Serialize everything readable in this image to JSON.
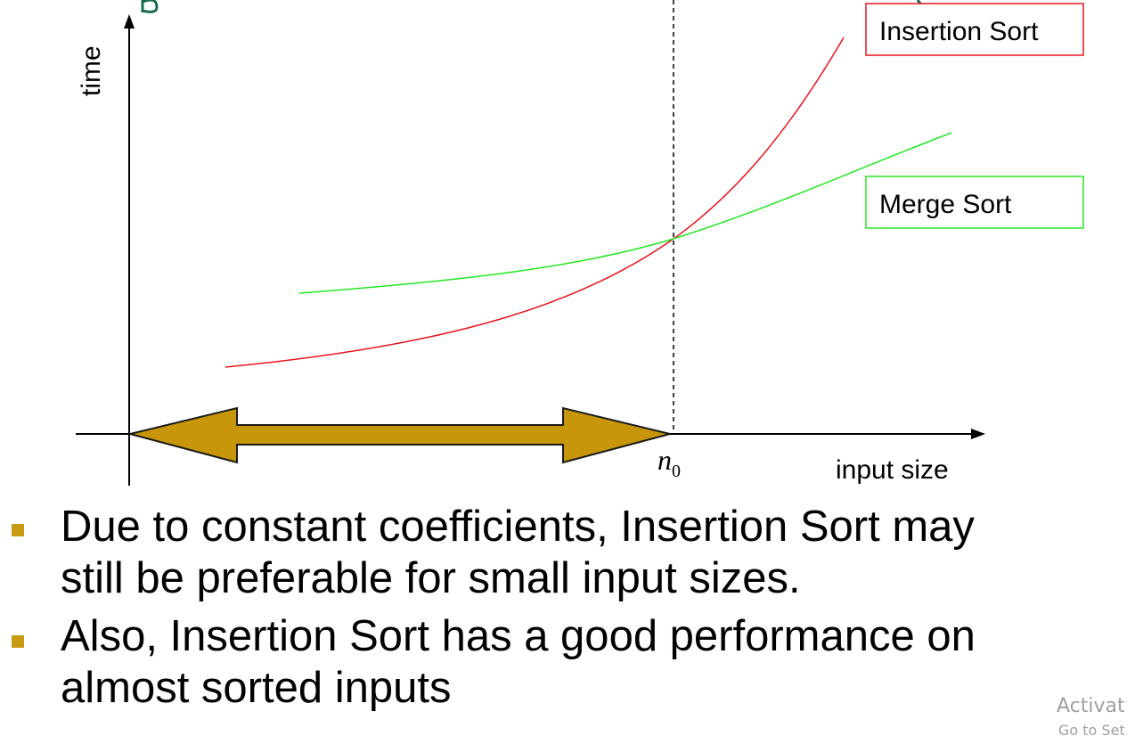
{
  "diagram": {
    "y_axis_label": "time",
    "x_axis_label": "input size",
    "threshold_label": "n",
    "threshold_subscript": "0",
    "legend": {
      "insertion": "Insertion Sort",
      "merge": "Merge Sort"
    },
    "colors": {
      "insertion": "#e8141c",
      "merge": "#22e822",
      "arrow": "#c8960a",
      "axis": "#000000"
    }
  },
  "bullets": [
    "Due to constant coefficients, Insertion Sort may\nstill be preferable for small input sizes.",
    "Also, Insertion Sort has a good performance on\nalmost sorted inputs"
  ],
  "watermark": {
    "line1": "Activat",
    "line2": "Go to Set"
  }
}
